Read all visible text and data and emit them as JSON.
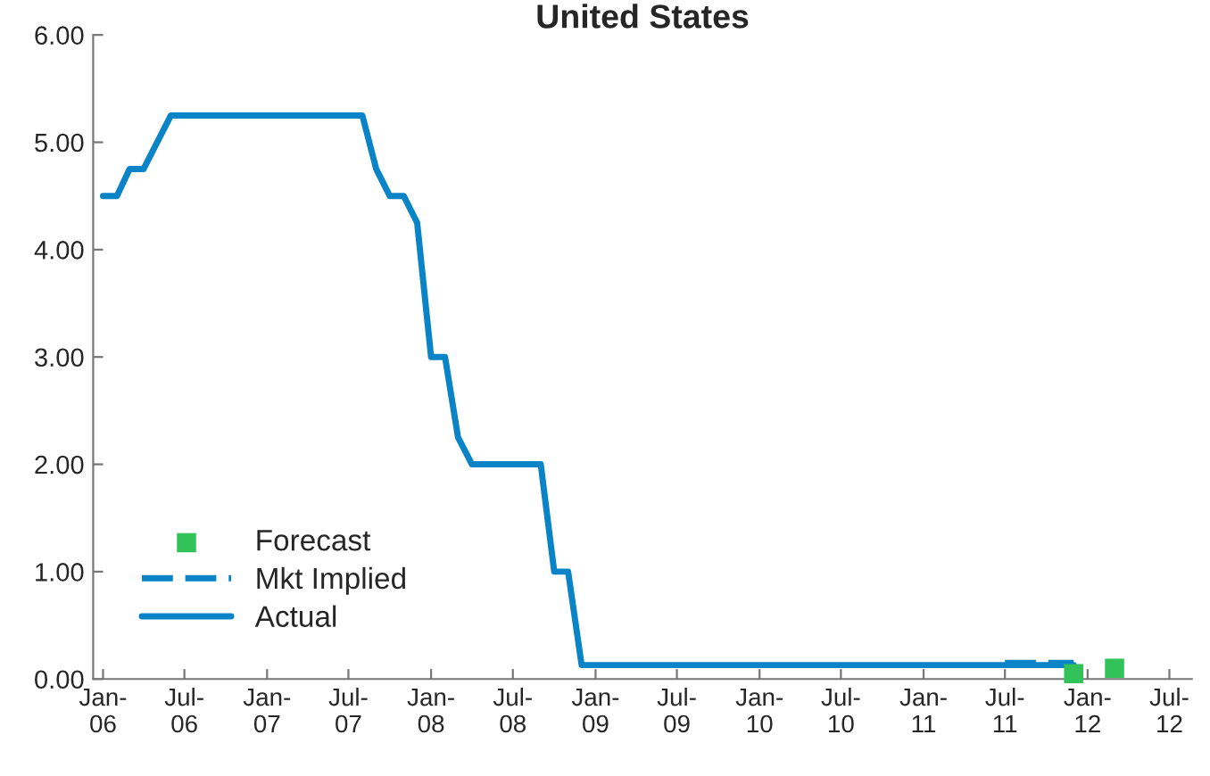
{
  "chart_data": {
    "type": "line",
    "title": "United States",
    "series": [
      {
        "name": "Forecast",
        "type": "scatter",
        "marker": "square",
        "color": "#33c15a",
        "x": [
          "2011-12",
          "2012-03"
        ],
        "values": [
          0.05,
          0.1
        ]
      },
      {
        "name": "Mkt Implied",
        "line_style": "dashed",
        "color": "#0a84c6",
        "x": [
          "2011-07",
          "2011-12"
        ],
        "values": [
          0.15,
          0.15
        ]
      },
      {
        "name": "Actual",
        "line_style": "solid",
        "color": "#0a84c6",
        "x": [
          "2006-01",
          "2006-02",
          "2006-03",
          "2006-04",
          "2006-06",
          "2007-08",
          "2007-09",
          "2007-10",
          "2007-11",
          "2007-12",
          "2008-01",
          "2008-02",
          "2008-03",
          "2008-04",
          "2008-09",
          "2008-10",
          "2008-11",
          "2008-12",
          "2011-12"
        ],
        "values": [
          4.5,
          4.5,
          4.75,
          4.75,
          5.25,
          5.25,
          4.75,
          4.5,
          4.5,
          4.25,
          3.0,
          3.0,
          2.25,
          2.0,
          2.0,
          1.0,
          1.0,
          0.13,
          0.13
        ]
      }
    ],
    "xlim": [
      "2005-12-10",
      "2012-08-20"
    ],
    "xticks": [
      {
        "value": "2006-01",
        "label": "Jan-\n06"
      },
      {
        "value": "2006-07",
        "label": "Jul-\n06"
      },
      {
        "value": "2007-01",
        "label": "Jan-\n07"
      },
      {
        "value": "2007-07",
        "label": "Jul-\n07"
      },
      {
        "value": "2008-01",
        "label": "Jan-\n08"
      },
      {
        "value": "2008-07",
        "label": "Jul-\n08"
      },
      {
        "value": "2009-01",
        "label": "Jan-\n09"
      },
      {
        "value": "2009-07",
        "label": "Jul-\n09"
      },
      {
        "value": "2010-01",
        "label": "Jan-\n10"
      },
      {
        "value": "2010-07",
        "label": "Jul-\n10"
      },
      {
        "value": "2011-01",
        "label": "Jan-\n11"
      },
      {
        "value": "2011-07",
        "label": "Jul-\n11"
      },
      {
        "value": "2012-01",
        "label": "Jan-\n12"
      },
      {
        "value": "2012-07",
        "label": "Jul-\n12"
      }
    ],
    "ylim": [
      0,
      6
    ],
    "yticks": [
      {
        "value": 0,
        "label": "0.00"
      },
      {
        "value": 1,
        "label": "1.00"
      },
      {
        "value": 2,
        "label": "2.00"
      },
      {
        "value": 3,
        "label": "3.00"
      },
      {
        "value": 4,
        "label": "4.00"
      },
      {
        "value": 5,
        "label": "5.00"
      },
      {
        "value": 6,
        "label": "6.00"
      }
    ],
    "grid": false,
    "legend": "bottom left"
  }
}
